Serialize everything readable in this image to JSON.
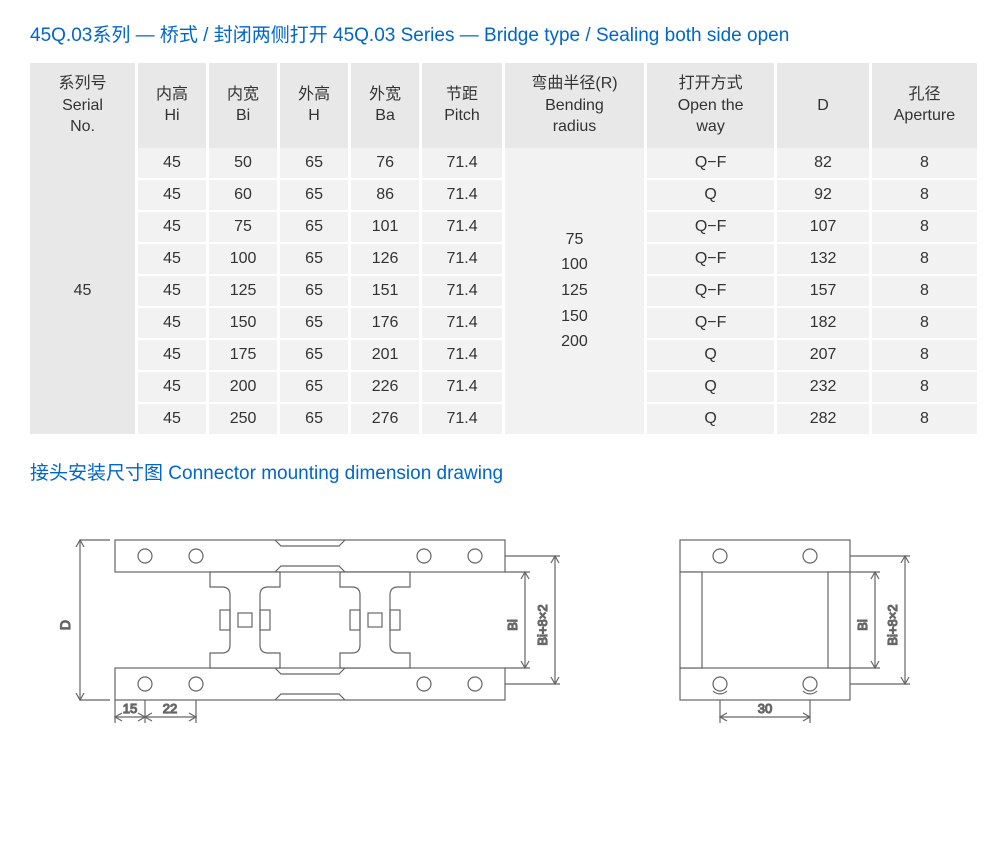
{
  "title": "45Q.03系列 — 桥式 / 封闭两侧打开 45Q.03 Series — Bridge type / Sealing both side open",
  "section2": "接头安装尺寸图 Connector mounting dimension drawing",
  "colors": {
    "heading": "#0066cc",
    "header_bg": "#e8e8e8",
    "row_bg": "#f2f2f2",
    "text": "#333333",
    "drawing_stroke": "#666666",
    "drawing_fill": "#ffffff"
  },
  "headers": {
    "serial": "系列号\nSerial\nNo.",
    "hi": "内高\nHi",
    "bi": "内宽\nBi",
    "h": "外高\nH",
    "ba": "外宽\nBa",
    "pitch": "节距\nPitch",
    "radius": "弯曲半径(R)\nBending\nradius",
    "open": "打开方式\nOpen the\nway",
    "d": "D",
    "aperture": "孔径\nAperture"
  },
  "serial": "45",
  "radius_values": "75\n100\n125\n150\n200",
  "rows": [
    {
      "hi": "45",
      "bi": "50",
      "h": "65",
      "ba": "76",
      "pitch": "71.4",
      "open": "Q−F",
      "d": "82",
      "ap": "8"
    },
    {
      "hi": "45",
      "bi": "60",
      "h": "65",
      "ba": "86",
      "pitch": "71.4",
      "open": "Q",
      "d": "92",
      "ap": "8"
    },
    {
      "hi": "45",
      "bi": "75",
      "h": "65",
      "ba": "101",
      "pitch": "71.4",
      "open": "Q−F",
      "d": "107",
      "ap": "8"
    },
    {
      "hi": "45",
      "bi": "100",
      "h": "65",
      "ba": "126",
      "pitch": "71.4",
      "open": "Q−F",
      "d": "132",
      "ap": "8"
    },
    {
      "hi": "45",
      "bi": "125",
      "h": "65",
      "ba": "151",
      "pitch": "71.4",
      "open": "Q−F",
      "d": "157",
      "ap": "8"
    },
    {
      "hi": "45",
      "bi": "150",
      "h": "65",
      "ba": "176",
      "pitch": "71.4",
      "open": "Q−F",
      "d": "182",
      "ap": "8"
    },
    {
      "hi": "45",
      "bi": "175",
      "h": "65",
      "ba": "201",
      "pitch": "71.4",
      "open": "Q",
      "d": "207",
      "ap": "8"
    },
    {
      "hi": "45",
      "bi": "200",
      "h": "65",
      "ba": "226",
      "pitch": "71.4",
      "open": "Q",
      "d": "232",
      "ap": "8"
    },
    {
      "hi": "45",
      "bi": "250",
      "h": "65",
      "ba": "276",
      "pitch": "71.4",
      "open": "Q",
      "d": "282",
      "ap": "8"
    }
  ],
  "dims": {
    "d": "D",
    "bi": "Bi",
    "bi8x2": "Bi+8×2",
    "n15": "15",
    "n22": "22",
    "n30": "30"
  },
  "col_widths": [
    "90px",
    "60px",
    "60px",
    "60px",
    "60px",
    "70px",
    "120px",
    "110px",
    "80px",
    "90px"
  ]
}
